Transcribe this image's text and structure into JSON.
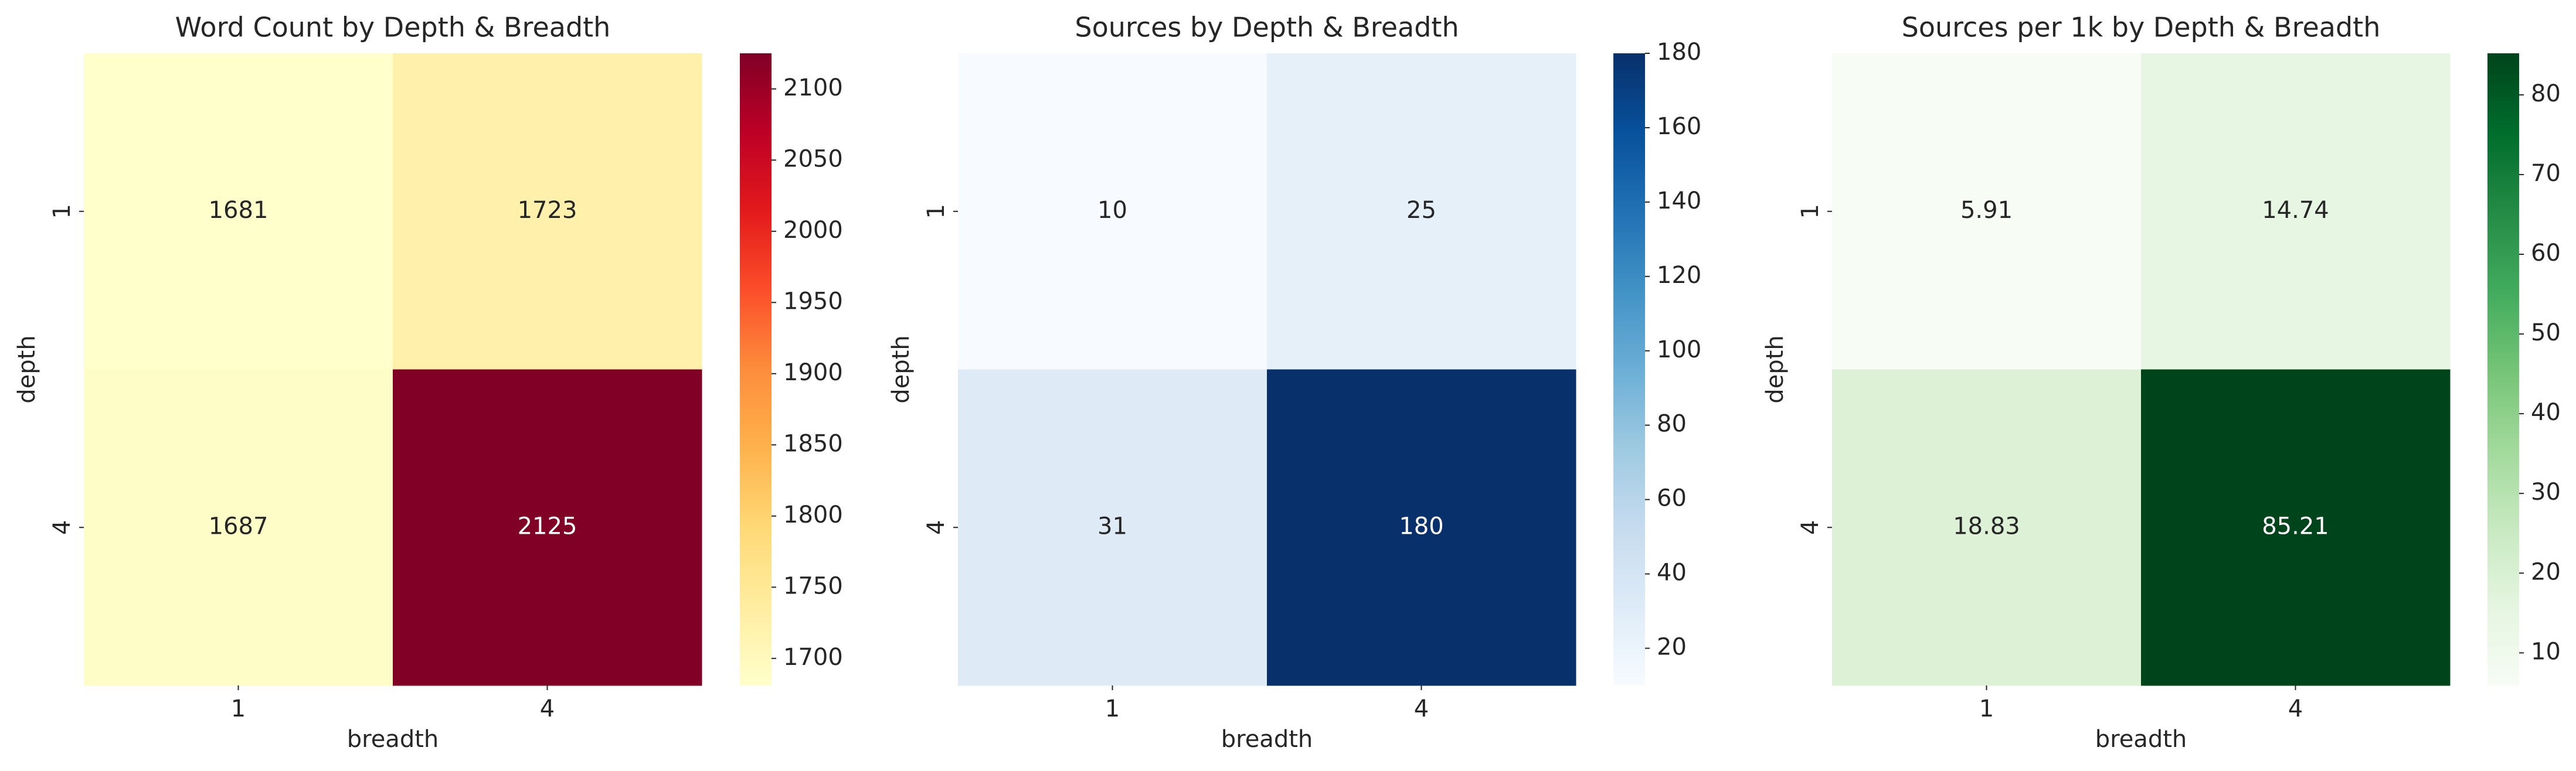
{
  "chart_data": [
    {
      "type": "heatmap",
      "title": "Word Count by Depth & Breadth",
      "xlabel": "breadth",
      "ylabel": "depth",
      "x_categories": [
        "1",
        "4"
      ],
      "y_categories": [
        "1",
        "4"
      ],
      "values": [
        [
          1681,
          1723
        ],
        [
          1687,
          2125
        ]
      ],
      "value_labels": [
        [
          "1681",
          "1723"
        ],
        [
          "1687",
          "2125"
        ]
      ],
      "colormap": "YlOrRd",
      "color_stops": [
        "#ffffcc",
        "#ffeda0",
        "#fed976",
        "#feb24c",
        "#fd8d3c",
        "#fc4e2a",
        "#e31a1c",
        "#bd0026",
        "#800026"
      ],
      "colorbar_range": [
        1681,
        2125
      ],
      "colorbar_ticks": [
        1700,
        1750,
        1800,
        1850,
        1900,
        1950,
        2000,
        2050,
        2100
      ]
    },
    {
      "type": "heatmap",
      "title": "Sources by Depth & Breadth",
      "xlabel": "breadth",
      "ylabel": "depth",
      "x_categories": [
        "1",
        "4"
      ],
      "y_categories": [
        "1",
        "4"
      ],
      "values": [
        [
          10,
          25
        ],
        [
          31,
          180
        ]
      ],
      "value_labels": [
        [
          "10",
          "25"
        ],
        [
          "31",
          "180"
        ]
      ],
      "colormap": "Blues",
      "color_stops": [
        "#f7fbff",
        "#deebf7",
        "#c6dbef",
        "#9ecae1",
        "#6baed6",
        "#4292c6",
        "#2171b5",
        "#08519c",
        "#08306b"
      ],
      "colorbar_range": [
        10,
        180
      ],
      "colorbar_ticks": [
        20,
        40,
        60,
        80,
        100,
        120,
        140,
        160,
        180
      ]
    },
    {
      "type": "heatmap",
      "title": "Sources per 1k by Depth & Breadth",
      "xlabel": "breadth",
      "ylabel": "depth",
      "x_categories": [
        "1",
        "4"
      ],
      "y_categories": [
        "1",
        "4"
      ],
      "values": [
        [
          5.91,
          14.74
        ],
        [
          18.83,
          85.21
        ]
      ],
      "value_labels": [
        [
          "5.91",
          "14.74"
        ],
        [
          "18.83",
          "85.21"
        ]
      ],
      "colormap": "Greens",
      "color_stops": [
        "#f7fcf5",
        "#e5f5e0",
        "#c7e9c0",
        "#a1d99b",
        "#74c476",
        "#41ab5d",
        "#238b45",
        "#006d2c",
        "#00441b"
      ],
      "colorbar_range": [
        5.91,
        85.21
      ],
      "colorbar_ticks": [
        10,
        20,
        30,
        40,
        50,
        60,
        70,
        80
      ]
    }
  ]
}
